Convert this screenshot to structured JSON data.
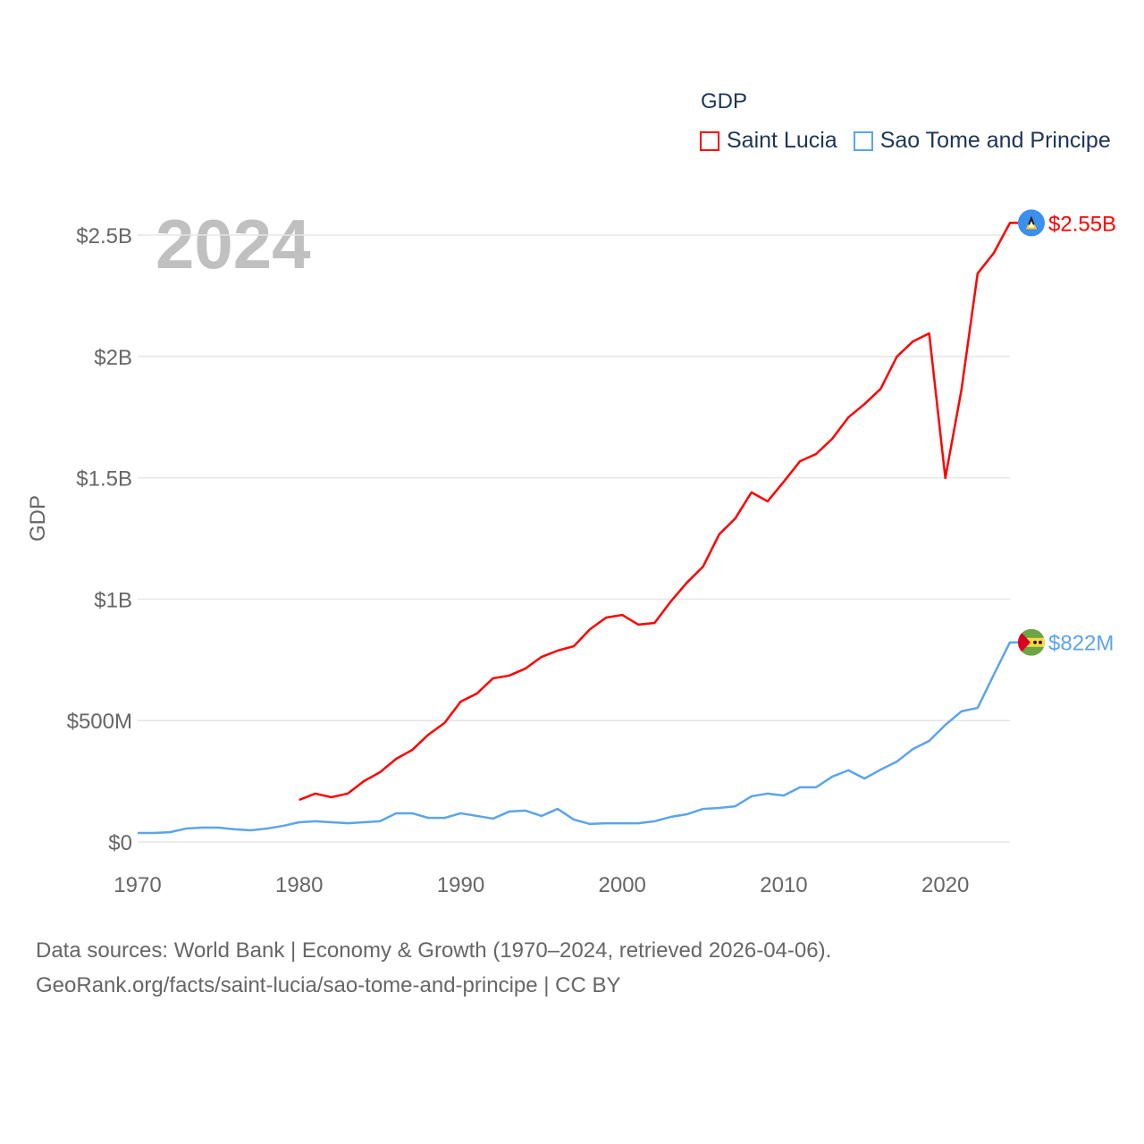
{
  "chart_data": {
    "type": "line",
    "title": "GDP",
    "year_label": "2024",
    "ylabel": "GDP",
    "xlabel": "",
    "xlim": [
      1970,
      2024
    ],
    "ylim": [
      0,
      2.6
    ],
    "y_unit": "billion USD",
    "grid": true,
    "legend_position": "top-right",
    "x_ticks": [
      {
        "v": 1970,
        "label": "1970"
      },
      {
        "v": 1980,
        "label": "1980"
      },
      {
        "v": 1990,
        "label": "1990"
      },
      {
        "v": 2000,
        "label": "2000"
      },
      {
        "v": 2010,
        "label": "2010"
      },
      {
        "v": 2020,
        "label": "2020"
      }
    ],
    "y_ticks": [
      {
        "v": 0,
        "label": "$0"
      },
      {
        "v": 0.5,
        "label": "$500M"
      },
      {
        "v": 1,
        "label": "$1B"
      },
      {
        "v": 1.5,
        "label": "$1.5B"
      },
      {
        "v": 2,
        "label": "$2B"
      },
      {
        "v": 2.5,
        "label": "$2.5B"
      }
    ],
    "series": [
      {
        "name": "Saint Lucia",
        "color": "#ff0000",
        "end_label": "$2.55B",
        "flag": "saint-lucia-flag",
        "start": 1980,
        "values": [
          0.173,
          0.199,
          0.184,
          0.199,
          0.25,
          0.287,
          0.342,
          0.379,
          0.442,
          0.49,
          0.578,
          0.611,
          0.674,
          0.685,
          0.714,
          0.762,
          0.788,
          0.806,
          0.876,
          0.924,
          0.935,
          0.895,
          0.902,
          0.99,
          1.068,
          1.134,
          1.267,
          1.333,
          1.44,
          1.403,
          1.484,
          1.568,
          1.598,
          1.661,
          1.749,
          1.804,
          1.867,
          1.999,
          2.062,
          2.095,
          1.499,
          1.863,
          2.342,
          2.426,
          2.55
        ]
      },
      {
        "name": "Sao Tome and Principe",
        "color": "#5ba4ec",
        "end_label": "$822M",
        "flag": "sao-tome-flag",
        "start": 1970,
        "values": [
          0.037,
          0.037,
          0.04,
          0.055,
          0.059,
          0.059,
          0.052,
          0.048,
          0.055,
          0.066,
          0.081,
          0.085,
          0.081,
          0.077,
          0.081,
          0.085,
          0.118,
          0.118,
          0.099,
          0.099,
          0.118,
          0.107,
          0.096,
          0.125,
          0.129,
          0.107,
          0.136,
          0.092,
          0.074,
          0.077,
          0.077,
          0.077,
          0.085,
          0.103,
          0.114,
          0.136,
          0.14,
          0.147,
          0.188,
          0.199,
          0.191,
          0.225,
          0.225,
          0.269,
          0.295,
          0.261,
          0.298,
          0.331,
          0.383,
          0.416,
          0.482,
          0.538,
          0.552,
          0.689,
          0.822
        ]
      }
    ]
  },
  "footer": {
    "line1": "Data sources: World Bank | Economy & Growth (1970–2024, retrieved 2026-04-06).",
    "line2": "GeoRank.org/facts/saint-lucia/sao-tome-and-principe | CC BY"
  }
}
